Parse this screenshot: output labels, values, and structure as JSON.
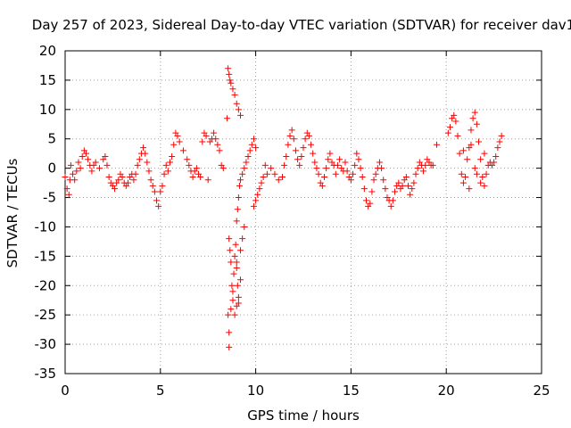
{
  "chart_data": {
    "type": "scatter",
    "title": "Day 257 of 2023, Sidereal Day-to-day VTEC variation (SDTVAR) for receiver dav1",
    "xlabel": "GPS time / hours",
    "ylabel": "SDTVAR / TECUs",
    "xlim": [
      0,
      25
    ],
    "ylim": [
      -35,
      20
    ],
    "x_ticks": [
      0,
      5,
      10,
      15,
      20,
      25
    ],
    "y_ticks": [
      -35,
      -30,
      -25,
      -20,
      -15,
      -10,
      -5,
      0,
      5,
      10,
      15,
      20
    ],
    "grid": true,
    "marker": "+",
    "color": "#ff0000",
    "series": [
      {
        "name": "dav1",
        "points": [
          [
            0.0,
            -1.5
          ],
          [
            0.1,
            -3.5
          ],
          [
            0.2,
            -4.5
          ],
          [
            0.25,
            -2.0
          ],
          [
            0.3,
            0.5
          ],
          [
            0.4,
            -1.0
          ],
          [
            0.5,
            -2.0
          ],
          [
            0.6,
            -0.5
          ],
          [
            0.7,
            1.0
          ],
          [
            0.8,
            0.0
          ],
          [
            0.9,
            2.0
          ],
          [
            1.0,
            3.0
          ],
          [
            1.1,
            2.5
          ],
          [
            1.2,
            1.5
          ],
          [
            1.3,
            0.5
          ],
          [
            1.4,
            -0.5
          ],
          [
            1.5,
            0.5
          ],
          [
            1.6,
            1.0
          ],
          [
            1.8,
            0.0
          ],
          [
            2.0,
            1.5
          ],
          [
            2.1,
            2.0
          ],
          [
            2.2,
            0.5
          ],
          [
            2.3,
            -1.5
          ],
          [
            2.4,
            -2.5
          ],
          [
            2.5,
            -3.0
          ],
          [
            2.6,
            -3.5
          ],
          [
            2.7,
            -2.5
          ],
          [
            2.8,
            -2.0
          ],
          [
            2.9,
            -1.0
          ],
          [
            3.0,
            -1.5
          ],
          [
            3.1,
            -2.5
          ],
          [
            3.2,
            -3.0
          ],
          [
            3.3,
            -2.5
          ],
          [
            3.4,
            -1.5
          ],
          [
            3.5,
            -1.0
          ],
          [
            3.6,
            -2.0
          ],
          [
            3.7,
            -1.0
          ],
          [
            3.8,
            0.5
          ],
          [
            3.9,
            1.5
          ],
          [
            4.0,
            2.5
          ],
          [
            4.1,
            3.5
          ],
          [
            4.2,
            2.5
          ],
          [
            4.3,
            1.0
          ],
          [
            4.4,
            -0.5
          ],
          [
            4.5,
            -2.0
          ],
          [
            4.6,
            -3.0
          ],
          [
            4.7,
            -4.0
          ],
          [
            4.8,
            -5.5
          ],
          [
            4.9,
            -6.5
          ],
          [
            5.0,
            -4.0
          ],
          [
            5.1,
            -3.0
          ],
          [
            5.2,
            -1.0
          ],
          [
            5.3,
            0.5
          ],
          [
            5.4,
            -0.5
          ],
          [
            5.5,
            1.0
          ],
          [
            5.6,
            2.0
          ],
          [
            5.7,
            4.0
          ],
          [
            5.8,
            6.0
          ],
          [
            5.9,
            5.5
          ],
          [
            6.0,
            4.5
          ],
          [
            6.2,
            3.0
          ],
          [
            6.4,
            1.5
          ],
          [
            6.5,
            0.5
          ],
          [
            6.6,
            -0.5
          ],
          [
            6.7,
            -1.5
          ],
          [
            6.8,
            -0.5
          ],
          [
            6.9,
            0.0
          ],
          [
            7.0,
            -1.0
          ],
          [
            7.1,
            -1.5
          ],
          [
            7.2,
            4.5
          ],
          [
            7.3,
            6.0
          ],
          [
            7.4,
            5.5
          ],
          [
            7.5,
            -2.0
          ],
          [
            7.6,
            4.5
          ],
          [
            7.7,
            5.0
          ],
          [
            7.8,
            6.0
          ],
          [
            7.9,
            5.0
          ],
          [
            8.0,
            4.0
          ],
          [
            8.1,
            3.0
          ],
          [
            8.2,
            0.5
          ],
          [
            8.3,
            0.0
          ],
          [
            8.5,
            8.5
          ],
          [
            8.55,
            17.0
          ],
          [
            8.6,
            16.0
          ],
          [
            8.65,
            15.0
          ],
          [
            8.7,
            14.5
          ],
          [
            8.8,
            13.5
          ],
          [
            8.9,
            12.5
          ],
          [
            9.0,
            11.0
          ],
          [
            9.1,
            10.0
          ],
          [
            9.2,
            9.0
          ],
          [
            8.6,
            -12.0
          ],
          [
            8.65,
            -14.0
          ],
          [
            8.7,
            -16.0
          ],
          [
            8.75,
            -20.0
          ],
          [
            8.8,
            -22.5
          ],
          [
            8.85,
            -18.0
          ],
          [
            8.9,
            -15.0
          ],
          [
            8.95,
            -13.0
          ],
          [
            9.0,
            -16.0
          ],
          [
            9.05,
            -20.0
          ],
          [
            9.1,
            -23.0
          ],
          [
            8.55,
            -25.0
          ],
          [
            8.6,
            -28.0
          ],
          [
            8.6,
            -30.5
          ],
          [
            8.7,
            -24.0
          ],
          [
            8.8,
            -21.0
          ],
          [
            9.0,
            -17.0
          ],
          [
            9.2,
            -14.0
          ],
          [
            9.3,
            -12.0
          ],
          [
            9.4,
            -10.0
          ],
          [
            9.0,
            -23.5
          ],
          [
            9.1,
            -22.0
          ],
          [
            9.2,
            -19.0
          ],
          [
            8.9,
            -25.0
          ],
          [
            9.0,
            -9.0
          ],
          [
            9.05,
            -7.0
          ],
          [
            9.1,
            -5.0
          ],
          [
            9.15,
            -3.0
          ],
          [
            9.2,
            -2.0
          ],
          [
            9.3,
            -1.0
          ],
          [
            9.4,
            0.0
          ],
          [
            9.5,
            1.0
          ],
          [
            9.6,
            2.0
          ],
          [
            9.7,
            3.0
          ],
          [
            9.8,
            4.0
          ],
          [
            9.9,
            5.0
          ],
          [
            10.0,
            3.5
          ],
          [
            9.9,
            -6.5
          ],
          [
            10.0,
            -5.5
          ],
          [
            10.1,
            -4.5
          ],
          [
            10.2,
            -3.5
          ],
          [
            10.3,
            -2.5
          ],
          [
            10.4,
            -1.5
          ],
          [
            10.5,
            0.5
          ],
          [
            10.6,
            -1.0
          ],
          [
            10.8,
            0.0
          ],
          [
            11.0,
            -1.0
          ],
          [
            11.2,
            -2.0
          ],
          [
            11.4,
            -1.5
          ],
          [
            11.5,
            0.5
          ],
          [
            11.6,
            2.0
          ],
          [
            11.7,
            4.0
          ],
          [
            11.8,
            5.5
          ],
          [
            11.9,
            6.5
          ],
          [
            12.0,
            5.0
          ],
          [
            12.1,
            3.0
          ],
          [
            12.2,
            1.5
          ],
          [
            12.3,
            0.5
          ],
          [
            12.4,
            2.0
          ],
          [
            12.5,
            3.5
          ],
          [
            12.6,
            5.0
          ],
          [
            12.7,
            6.0
          ],
          [
            12.8,
            5.5
          ],
          [
            12.9,
            4.0
          ],
          [
            13.0,
            2.5
          ],
          [
            13.1,
            1.0
          ],
          [
            13.2,
            0.0
          ],
          [
            13.3,
            -1.0
          ],
          [
            13.4,
            -2.5
          ],
          [
            13.5,
            -3.0
          ],
          [
            13.6,
            -1.5
          ],
          [
            13.7,
            0.0
          ],
          [
            13.8,
            1.5
          ],
          [
            13.9,
            2.5
          ],
          [
            14.0,
            1.0
          ],
          [
            14.1,
            0.5
          ],
          [
            14.2,
            -1.0
          ],
          [
            14.3,
            0.5
          ],
          [
            14.4,
            1.5
          ],
          [
            14.5,
            0.0
          ],
          [
            14.6,
            -0.5
          ],
          [
            14.7,
            1.0
          ],
          [
            14.8,
            -0.5
          ],
          [
            14.9,
            -1.5
          ],
          [
            15.0,
            -2.0
          ],
          [
            15.1,
            -1.0
          ],
          [
            15.2,
            0.5
          ],
          [
            15.3,
            2.5
          ],
          [
            15.4,
            1.5
          ],
          [
            15.5,
            0.0
          ],
          [
            15.6,
            -1.5
          ],
          [
            15.7,
            -3.5
          ],
          [
            15.8,
            -5.5
          ],
          [
            15.9,
            -6.5
          ],
          [
            16.0,
            -6.0
          ],
          [
            16.1,
            -4.0
          ],
          [
            16.2,
            -2.0
          ],
          [
            16.3,
            -1.0
          ],
          [
            16.4,
            0.0
          ],
          [
            16.5,
            1.0
          ],
          [
            16.6,
            0.0
          ],
          [
            16.7,
            -2.0
          ],
          [
            16.8,
            -3.5
          ],
          [
            16.9,
            -5.0
          ],
          [
            17.0,
            -5.5
          ],
          [
            17.1,
            -6.5
          ],
          [
            17.2,
            -5.5
          ],
          [
            17.3,
            -4.0
          ],
          [
            17.4,
            -3.0
          ],
          [
            17.5,
            -2.5
          ],
          [
            17.6,
            -3.5
          ],
          [
            17.7,
            -3.0
          ],
          [
            17.8,
            -2.0
          ],
          [
            17.9,
            -1.5
          ],
          [
            18.0,
            -3.0
          ],
          [
            18.1,
            -4.5
          ],
          [
            18.2,
            -3.5
          ],
          [
            18.3,
            -2.5
          ],
          [
            18.4,
            -1.0
          ],
          [
            18.5,
            0.0
          ],
          [
            18.6,
            1.0
          ],
          [
            18.7,
            0.5
          ],
          [
            18.8,
            -0.5
          ],
          [
            18.9,
            0.5
          ],
          [
            19.0,
            1.5
          ],
          [
            19.1,
            1.0
          ],
          [
            19.2,
            0.5
          ],
          [
            19.3,
            0.5
          ],
          [
            19.5,
            4.0
          ],
          [
            20.1,
            6.0
          ],
          [
            20.2,
            7.0
          ],
          [
            20.3,
            8.5
          ],
          [
            20.4,
            9.0
          ],
          [
            20.5,
            8.0
          ],
          [
            20.6,
            5.5
          ],
          [
            20.7,
            2.5
          ],
          [
            20.8,
            -1.0
          ],
          [
            20.9,
            -2.5
          ],
          [
            21.0,
            -1.5
          ],
          [
            21.1,
            1.5
          ],
          [
            21.2,
            3.5
          ],
          [
            21.3,
            6.5
          ],
          [
            21.4,
            8.5
          ],
          [
            21.5,
            9.5
          ],
          [
            21.6,
            7.5
          ],
          [
            21.7,
            4.5
          ],
          [
            21.8,
            1.5
          ],
          [
            21.9,
            -1.5
          ],
          [
            22.0,
            -3.0
          ],
          [
            22.1,
            -1.0
          ],
          [
            22.2,
            0.5
          ],
          [
            22.3,
            1.0
          ],
          [
            22.4,
            0.5
          ],
          [
            22.5,
            1.0
          ],
          [
            22.6,
            2.0
          ],
          [
            22.7,
            3.5
          ],
          [
            22.8,
            4.5
          ],
          [
            22.9,
            5.5
          ],
          [
            21.2,
            -3.5
          ],
          [
            21.5,
            0.0
          ],
          [
            21.8,
            -2.5
          ],
          [
            22.0,
            2.5
          ],
          [
            21.3,
            4.0
          ],
          [
            20.9,
            3.0
          ],
          [
            21.6,
            -1.0
          ]
        ]
      }
    ]
  }
}
